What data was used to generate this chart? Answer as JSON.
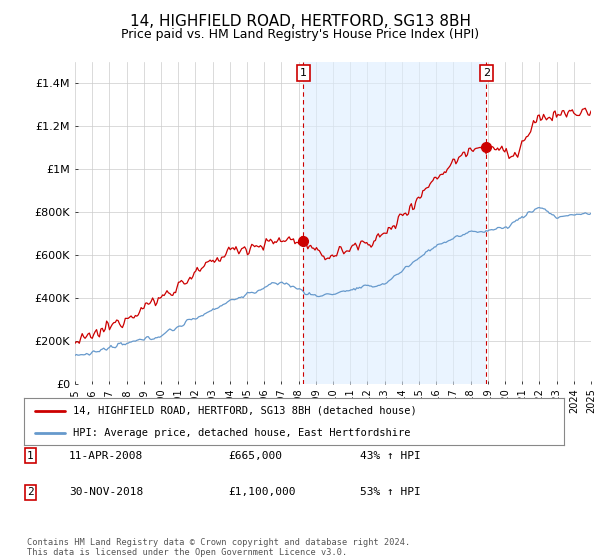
{
  "title": "14, HIGHFIELD ROAD, HERTFORD, SG13 8BH",
  "subtitle": "Price paid vs. HM Land Registry's House Price Index (HPI)",
  "title_fontsize": 11,
  "subtitle_fontsize": 9,
  "ylim": [
    0,
    1500000
  ],
  "yticks": [
    0,
    200000,
    400000,
    600000,
    800000,
    1000000,
    1200000,
    1400000
  ],
  "ytick_labels": [
    "£0",
    "£200K",
    "£400K",
    "£600K",
    "£800K",
    "£1M",
    "£1.2M",
    "£1.4M"
  ],
  "background_color": "#ffffff",
  "plot_bg_color": "#ffffff",
  "grid_color": "#cccccc",
  "shade_color": "#ddeeff",
  "red_color": "#cc0000",
  "blue_color": "#6699cc",
  "sale1_year": 2008.27,
  "sale1_price": 665000,
  "sale1_label": "1",
  "sale2_year": 2018.92,
  "sale2_price": 1100000,
  "sale2_label": "2",
  "annotation1_date": "11-APR-2008",
  "annotation1_price": "£665,000",
  "annotation1_hpi": "43% ↑ HPI",
  "annotation2_date": "30-NOV-2018",
  "annotation2_price": "£1,100,000",
  "annotation2_hpi": "53% ↑ HPI",
  "legend_label1": "14, HIGHFIELD ROAD, HERTFORD, SG13 8BH (detached house)",
  "legend_label2": "HPI: Average price, detached house, East Hertfordshire",
  "footer": "Contains HM Land Registry data © Crown copyright and database right 2024.\nThis data is licensed under the Open Government Licence v3.0.",
  "xmin": 1995,
  "xmax": 2025
}
